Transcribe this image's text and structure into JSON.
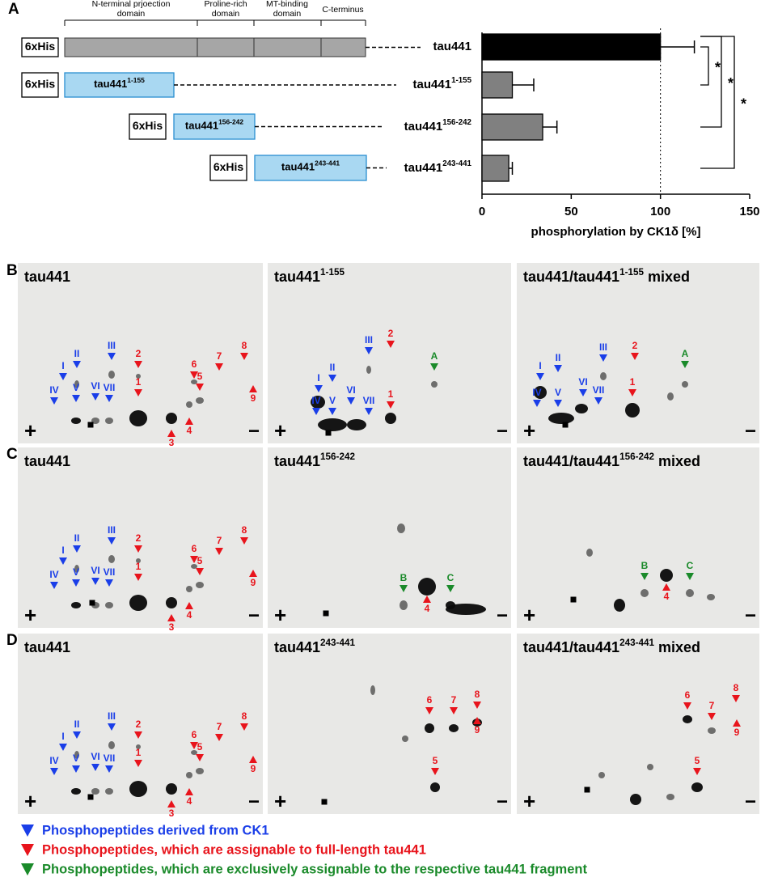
{
  "panel_labels": [
    "A",
    "B",
    "C",
    "D"
  ],
  "constructs": {
    "tag": "6xHis",
    "name": "tau441",
    "domains": [
      [
        "N-terminal prjoection",
        "domain"
      ],
      [
        "Proline-rich",
        "domain"
      ],
      [
        "MT-binding",
        "domain"
      ],
      [
        "C-terminus"
      ]
    ],
    "fragments": [
      "1-155",
      "156-242",
      "243-441"
    ]
  },
  "chart_data": {
    "type": "bar",
    "orientation": "horizontal",
    "categories": [
      {
        "text": "tau441"
      },
      {
        "text": "tau441",
        "sup": "1-155"
      },
      {
        "text": "tau441",
        "sup": "156-242"
      },
      {
        "text": "tau441",
        "sup": "243-441"
      }
    ],
    "values": [
      100,
      17,
      34,
      15
    ],
    "errors": [
      19,
      12,
      8,
      2
    ],
    "colors": [
      "#000000",
      "#808080",
      "#808080",
      "#808080"
    ],
    "xlim": [
      0,
      150
    ],
    "xticks": [
      0,
      50,
      100,
      150
    ],
    "xlabel": "phosphorylation by CK1δ [%]",
    "reference_line": 100,
    "significance": [
      "*",
      "*",
      "*"
    ]
  },
  "gels": {
    "plus": "+",
    "minus": "−",
    "rows": [
      {
        "panels": [
          {
            "title": "tau441",
            "markers": [
              {
                "label": "I",
                "color": "#1a3ee8"
              },
              {
                "label": "II",
                "color": "#1a3ee8"
              },
              {
                "label": "III",
                "color": "#1a3ee8"
              },
              {
                "label": "IV",
                "color": "#1a3ee8"
              },
              {
                "label": "V",
                "color": "#1a3ee8"
              },
              {
                "label": "VI",
                "color": "#1a3ee8"
              },
              {
                "label": "VII",
                "color": "#1a3ee8"
              },
              {
                "label": "1",
                "color": "#e8141c"
              },
              {
                "label": "2",
                "color": "#e8141c"
              },
              {
                "label": "3",
                "color": "#e8141c"
              },
              {
                "label": "4",
                "color": "#e8141c"
              },
              {
                "label": "5",
                "color": "#e8141c"
              },
              {
                "label": "6",
                "color": "#e8141c"
              },
              {
                "label": "7",
                "color": "#e8141c"
              },
              {
                "label": "8",
                "color": "#e8141c"
              },
              {
                "label": "9",
                "color": "#e8141c"
              }
            ]
          },
          {
            "title": "tau441",
            "sup": "1-155",
            "markers": [
              {
                "label": "I",
                "color": "#1a3ee8"
              },
              {
                "label": "II",
                "color": "#1a3ee8"
              },
              {
                "label": "III",
                "color": "#1a3ee8"
              },
              {
                "label": "IV",
                "color": "#1a3ee8"
              },
              {
                "label": "V",
                "color": "#1a3ee8"
              },
              {
                "label": "VI",
                "color": "#1a3ee8"
              },
              {
                "label": "VII",
                "color": "#1a3ee8"
              },
              {
                "label": "1",
                "color": "#e8141c"
              },
              {
                "label": "2",
                "color": "#e8141c"
              },
              {
                "label": "A",
                "color": "#1a8a2a"
              }
            ]
          },
          {
            "title": "tau441/tau441",
            "sup": "1-155",
            "suffix": "mixed",
            "markers": [
              {
                "label": "I",
                "color": "#1a3ee8"
              },
              {
                "label": "II",
                "color": "#1a3ee8"
              },
              {
                "label": "III",
                "color": "#1a3ee8"
              },
              {
                "label": "IV",
                "color": "#1a3ee8"
              },
              {
                "label": "V",
                "color": "#1a3ee8"
              },
              {
                "label": "VI",
                "color": "#1a3ee8"
              },
              {
                "label": "VII",
                "color": "#1a3ee8"
              },
              {
                "label": "1",
                "color": "#e8141c"
              },
              {
                "label": "2",
                "color": "#e8141c"
              },
              {
                "label": "A",
                "color": "#1a8a2a"
              }
            ]
          }
        ]
      },
      {
        "panels": [
          {
            "title": "tau441",
            "markers": [
              {
                "label": "I",
                "color": "#1a3ee8"
              },
              {
                "label": "II",
                "color": "#1a3ee8"
              },
              {
                "label": "III",
                "color": "#1a3ee8"
              },
              {
                "label": "IV",
                "color": "#1a3ee8"
              },
              {
                "label": "V",
                "color": "#1a3ee8"
              },
              {
                "label": "VI",
                "color": "#1a3ee8"
              },
              {
                "label": "VII",
                "color": "#1a3ee8"
              },
              {
                "label": "1",
                "color": "#e8141c"
              },
              {
                "label": "2",
                "color": "#e8141c"
              },
              {
                "label": "3",
                "color": "#e8141c"
              },
              {
                "label": "4",
                "color": "#e8141c"
              },
              {
                "label": "5",
                "color": "#e8141c"
              },
              {
                "label": "6",
                "color": "#e8141c"
              },
              {
                "label": "7",
                "color": "#e8141c"
              },
              {
                "label": "8",
                "color": "#e8141c"
              },
              {
                "label": "9",
                "color": "#e8141c"
              }
            ]
          },
          {
            "title": "tau441",
            "sup": "156-242",
            "markers": [
              {
                "label": "B",
                "color": "#1a8a2a"
              },
              {
                "label": "C",
                "color": "#1a8a2a"
              },
              {
                "label": "4",
                "color": "#e8141c"
              }
            ]
          },
          {
            "title": "tau441/tau441",
            "sup": "156-242",
            "suffix": "mixed",
            "markers": [
              {
                "label": "B",
                "color": "#1a8a2a"
              },
              {
                "label": "C",
                "color": "#1a8a2a"
              },
              {
                "label": "4",
                "color": "#e8141c"
              }
            ]
          }
        ]
      },
      {
        "panels": [
          {
            "title": "tau441",
            "markers": [
              {
                "label": "I",
                "color": "#1a3ee8"
              },
              {
                "label": "II",
                "color": "#1a3ee8"
              },
              {
                "label": "III",
                "color": "#1a3ee8"
              },
              {
                "label": "IV",
                "color": "#1a3ee8"
              },
              {
                "label": "V",
                "color": "#1a3ee8"
              },
              {
                "label": "VI",
                "color": "#1a3ee8"
              },
              {
                "label": "VII",
                "color": "#1a3ee8"
              },
              {
                "label": "1",
                "color": "#e8141c"
              },
              {
                "label": "2",
                "color": "#e8141c"
              },
              {
                "label": "3",
                "color": "#e8141c"
              },
              {
                "label": "4",
                "color": "#e8141c"
              },
              {
                "label": "5",
                "color": "#e8141c"
              },
              {
                "label": "6",
                "color": "#e8141c"
              },
              {
                "label": "7",
                "color": "#e8141c"
              },
              {
                "label": "8",
                "color": "#e8141c"
              },
              {
                "label": "9",
                "color": "#e8141c"
              }
            ]
          },
          {
            "title": "tau441",
            "sup": "243-441",
            "markers": [
              {
                "label": "6",
                "color": "#e8141c"
              },
              {
                "label": "7",
                "color": "#e8141c"
              },
              {
                "label": "8",
                "color": "#e8141c"
              },
              {
                "label": "9",
                "color": "#e8141c"
              },
              {
                "label": "5",
                "color": "#e8141c"
              }
            ]
          },
          {
            "title": "tau441/tau441",
            "sup": "243-441",
            "suffix": "mixed",
            "markers": [
              {
                "label": "6",
                "color": "#e8141c"
              },
              {
                "label": "7",
                "color": "#e8141c"
              },
              {
                "label": "8",
                "color": "#e8141c"
              },
              {
                "label": "9",
                "color": "#e8141c"
              },
              {
                "label": "5",
                "color": "#e8141c"
              }
            ]
          }
        ]
      }
    ]
  },
  "legend": [
    {
      "color": "#1a3ee8",
      "text": "Phosphopeptides derived from CK1"
    },
    {
      "color": "#e8141c",
      "text": "Phosphopeptides, which are assignable to full-length tau441"
    },
    {
      "color": "#1a8a2a",
      "text": "Phosphopeptides, which are exclusively assignable to the respective tau441 fragment"
    }
  ]
}
